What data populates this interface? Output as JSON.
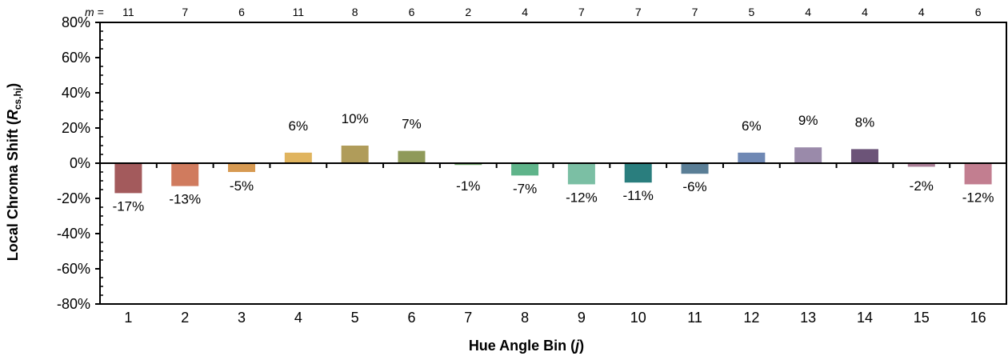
{
  "chart_data": {
    "type": "bar",
    "categories": [
      "1",
      "2",
      "3",
      "4",
      "5",
      "6",
      "7",
      "8",
      "9",
      "10",
      "11",
      "12",
      "13",
      "14",
      "15",
      "16"
    ],
    "values": [
      -17,
      -13,
      -5,
      6,
      10,
      7,
      -1,
      -7,
      -12,
      -11,
      -6,
      6,
      9,
      8,
      -2,
      -12
    ],
    "data_labels": [
      "-17%",
      "-13%",
      "-5%",
      "6%",
      "10%",
      "7%",
      "-1%",
      "-7%",
      "-12%",
      "-11%",
      "-6%",
      "6%",
      "9%",
      "8%",
      "-2%",
      "-12%"
    ],
    "bar_colors": [
      "#a35a5c",
      "#d07b5e",
      "#d79a52",
      "#e0b45e",
      "#b09c5a",
      "#8f9a5a",
      "#6fa06a",
      "#5fb48a",
      "#7bbfa4",
      "#2a7e7e",
      "#5a7e96",
      "#6f88b4",
      "#9a8aaa",
      "#6c5478",
      "#aa7e96",
      "#c27e90"
    ],
    "m_prefix": "m =",
    "m_values": [
      "11",
      "7",
      "6",
      "11",
      "8",
      "6",
      "2",
      "4",
      "7",
      "7",
      "7",
      "5",
      "4",
      "4",
      "4",
      "6"
    ],
    "ylim": [
      -80,
      80
    ],
    "y_ticks": [
      "80%",
      "60%",
      "40%",
      "20%",
      "0%",
      "-20%",
      "-40%",
      "-60%",
      "-80%"
    ],
    "y_tick_values": [
      80,
      60,
      40,
      20,
      0,
      -20,
      -40,
      -60,
      -80
    ],
    "xlabel": "Hue Angle Bin (j)",
    "xlabel_main": "Hue Angle Bin (",
    "xlabel_var": "j",
    "xlabel_close": ")",
    "ylabel": "Local Chroma Shift (Rcs,hj)",
    "ylabel_main": "Local Chroma Shift (",
    "ylabel_var": "R",
    "ylabel_sub": "cs,hj",
    "ylabel_close": ")",
    "grid": false
  }
}
